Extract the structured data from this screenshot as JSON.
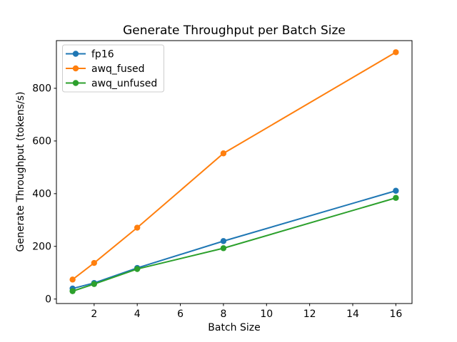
{
  "chart_data": {
    "type": "line",
    "title": "Generate Throughput per Batch Size",
    "xlabel": "Batch Size",
    "ylabel": "Generate Throughput (tokens/s)",
    "x": [
      1,
      2,
      4,
      8,
      16
    ],
    "series": [
      {
        "name": "fp16",
        "color": "#1f77b4",
        "values": [
          40,
          61,
          118,
          220,
          411
        ]
      },
      {
        "name": "awq_fused",
        "color": "#ff7f0e",
        "values": [
          74,
          137,
          271,
          553,
          937
        ]
      },
      {
        "name": "awq_unfused",
        "color": "#2ca02c",
        "values": [
          30,
          57,
          114,
          193,
          384
        ]
      }
    ],
    "x_ticks": [
      2,
      4,
      6,
      8,
      10,
      12,
      14,
      16
    ],
    "y_ticks": [
      0,
      200,
      400,
      600,
      800
    ],
    "xlim": [
      0.25,
      16.75
    ],
    "ylim": [
      -17,
      981
    ],
    "grid": false,
    "legend_position": "upper-left",
    "marker": "o",
    "axis_color": "#000000",
    "legend_border_color": "#cccccc",
    "background": "#ffffff"
  }
}
